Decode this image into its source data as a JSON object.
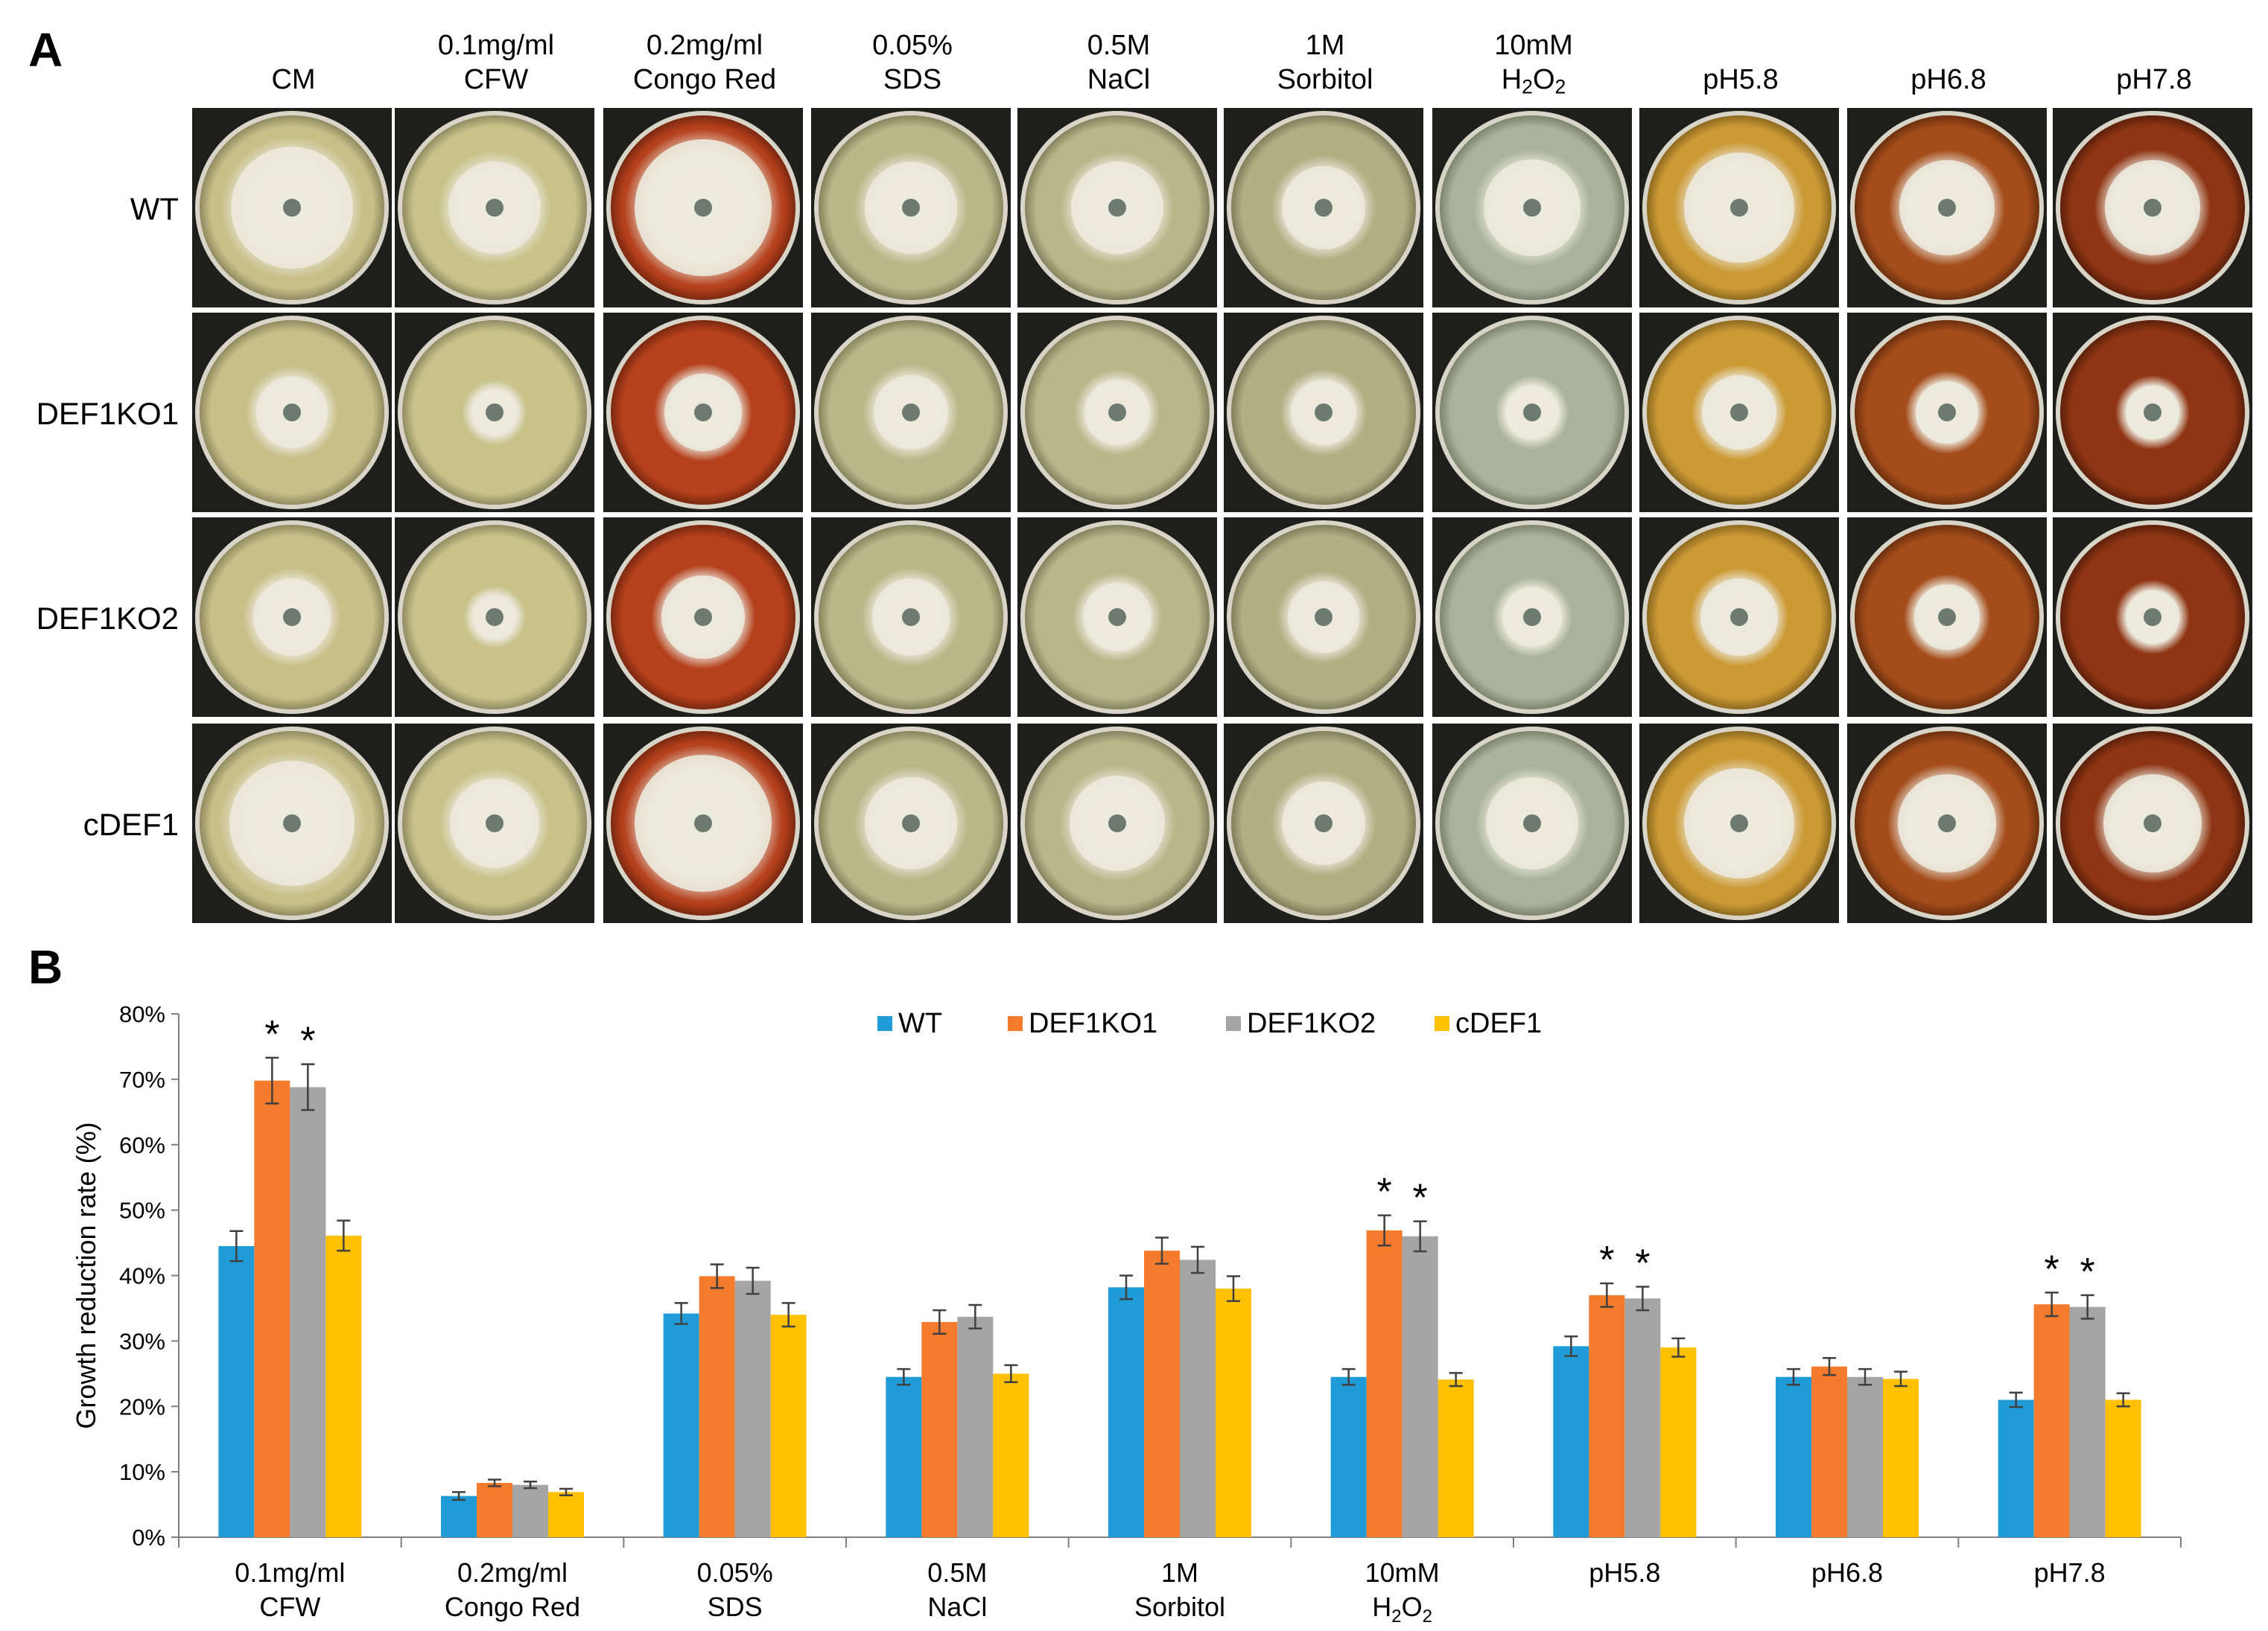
{
  "panel_a": {
    "letter": "A",
    "columns": [
      {
        "line1": "",
        "line2": "CM",
        "plate": "#c7bf88",
        "rim": "#8f8a60"
      },
      {
        "line1": "0.1mg/ml",
        "line2": "CFW",
        "plate": "#c8c28a",
        "rim": "#908b62"
      },
      {
        "line1": "0.2mg/ml",
        "line2": "Congo Red",
        "plate": "#b5401c",
        "rim": "#7a2810"
      },
      {
        "line1": "0.05%",
        "line2": "SDS",
        "plate": "#b9b889",
        "rim": "#85845e"
      },
      {
        "line1": "0.5M",
        "line2": "NaCl",
        "plate": "#b8b68a",
        "rim": "#85835f"
      },
      {
        "line1": "1M",
        "line2": "Sorbitol",
        "plate": "#b1b085",
        "rim": "#807f5c"
      },
      {
        "line1": "10mM",
        "line2": "H",
        "sub": "2",
        "line2b": "O",
        "sub2": "2",
        "plate": "#a9b29a",
        "rim": "#7d846f"
      },
      {
        "line1": "",
        "line2": "pH5.8",
        "plate": "#cc9a35",
        "rim": "#8e6a20"
      },
      {
        "line1": "",
        "line2": "pH6.8",
        "plate": "#a44c1a",
        "rim": "#6c300e"
      },
      {
        "line1": "",
        "line2": "pH7.8",
        "plate": "#8f3514",
        "rim": "#5c200a"
      }
    ],
    "rows": [
      "WT",
      "DEF1KO1",
      "DEF1KO2",
      "cDEF1"
    ]
  },
  "panel_b": {
    "letter": "B"
  },
  "chart_data": {
    "type": "bar",
    "title": "",
    "ylabel": "Growth reduction rate (%)",
    "xlabel": "",
    "ylim": [
      0,
      80
    ],
    "yticks": [
      "0%",
      "10%",
      "20%",
      "30%",
      "40%",
      "50%",
      "60%",
      "70%",
      "80%"
    ],
    "categories": [
      {
        "line1": "0.1mg/ml",
        "line2": "CFW"
      },
      {
        "line1": "0.2mg/ml",
        "line2": "Congo Red"
      },
      {
        "line1": "0.05%",
        "line2": "SDS"
      },
      {
        "line1": "0.5M",
        "line2": "NaCl"
      },
      {
        "line1": "1M",
        "line2": "Sorbitol"
      },
      {
        "line1": "10mM",
        "line2": "H2O2"
      },
      {
        "line1": "pH5.8",
        "line2": ""
      },
      {
        "line1": "pH6.8",
        "line2": ""
      },
      {
        "line1": "pH7.8",
        "line2": ""
      }
    ],
    "series": [
      {
        "name": "WT",
        "color": "#1f9bd7",
        "values": [
          44.5,
          6.3,
          34.2,
          24.5,
          38.2,
          24.5,
          29.2,
          24.5,
          21.0
        ],
        "errors": [
          2.3,
          0.6,
          1.6,
          1.2,
          1.8,
          1.2,
          1.5,
          1.2,
          1.1
        ]
      },
      {
        "name": "DEF1KO1",
        "color": "#f47a2c",
        "values": [
          69.8,
          8.3,
          39.9,
          32.9,
          43.8,
          46.9,
          37.0,
          26.1,
          35.6
        ],
        "errors": [
          3.5,
          0.5,
          1.8,
          1.8,
          2.0,
          2.3,
          1.8,
          1.3,
          1.8
        ]
      },
      {
        "name": "DEF1KO2",
        "color": "#a5a5a5",
        "values": [
          68.8,
          8.0,
          39.2,
          33.7,
          42.4,
          46.0,
          36.5,
          24.5,
          35.2
        ],
        "errors": [
          3.5,
          0.5,
          2.0,
          1.8,
          2.0,
          2.3,
          1.8,
          1.2,
          1.8
        ]
      },
      {
        "name": "cDEF1",
        "color": "#ffc000",
        "values": [
          46.1,
          6.9,
          34.0,
          25.0,
          38.0,
          24.1,
          29.0,
          24.2,
          21.0
        ],
        "errors": [
          2.3,
          0.5,
          1.8,
          1.3,
          1.9,
          1.0,
          1.4,
          1.1,
          1.0
        ]
      }
    ],
    "significance": [
      {
        "category": 0,
        "series": 1,
        "label": "*"
      },
      {
        "category": 0,
        "series": 2,
        "label": "*"
      },
      {
        "category": 5,
        "series": 1,
        "label": "*"
      },
      {
        "category": 5,
        "series": 2,
        "label": "*"
      },
      {
        "category": 6,
        "series": 1,
        "label": "*"
      },
      {
        "category": 6,
        "series": 2,
        "label": "*"
      },
      {
        "category": 8,
        "series": 1,
        "label": "*"
      },
      {
        "category": 8,
        "series": 2,
        "label": "*"
      }
    ],
    "legend_position": "top-center"
  }
}
